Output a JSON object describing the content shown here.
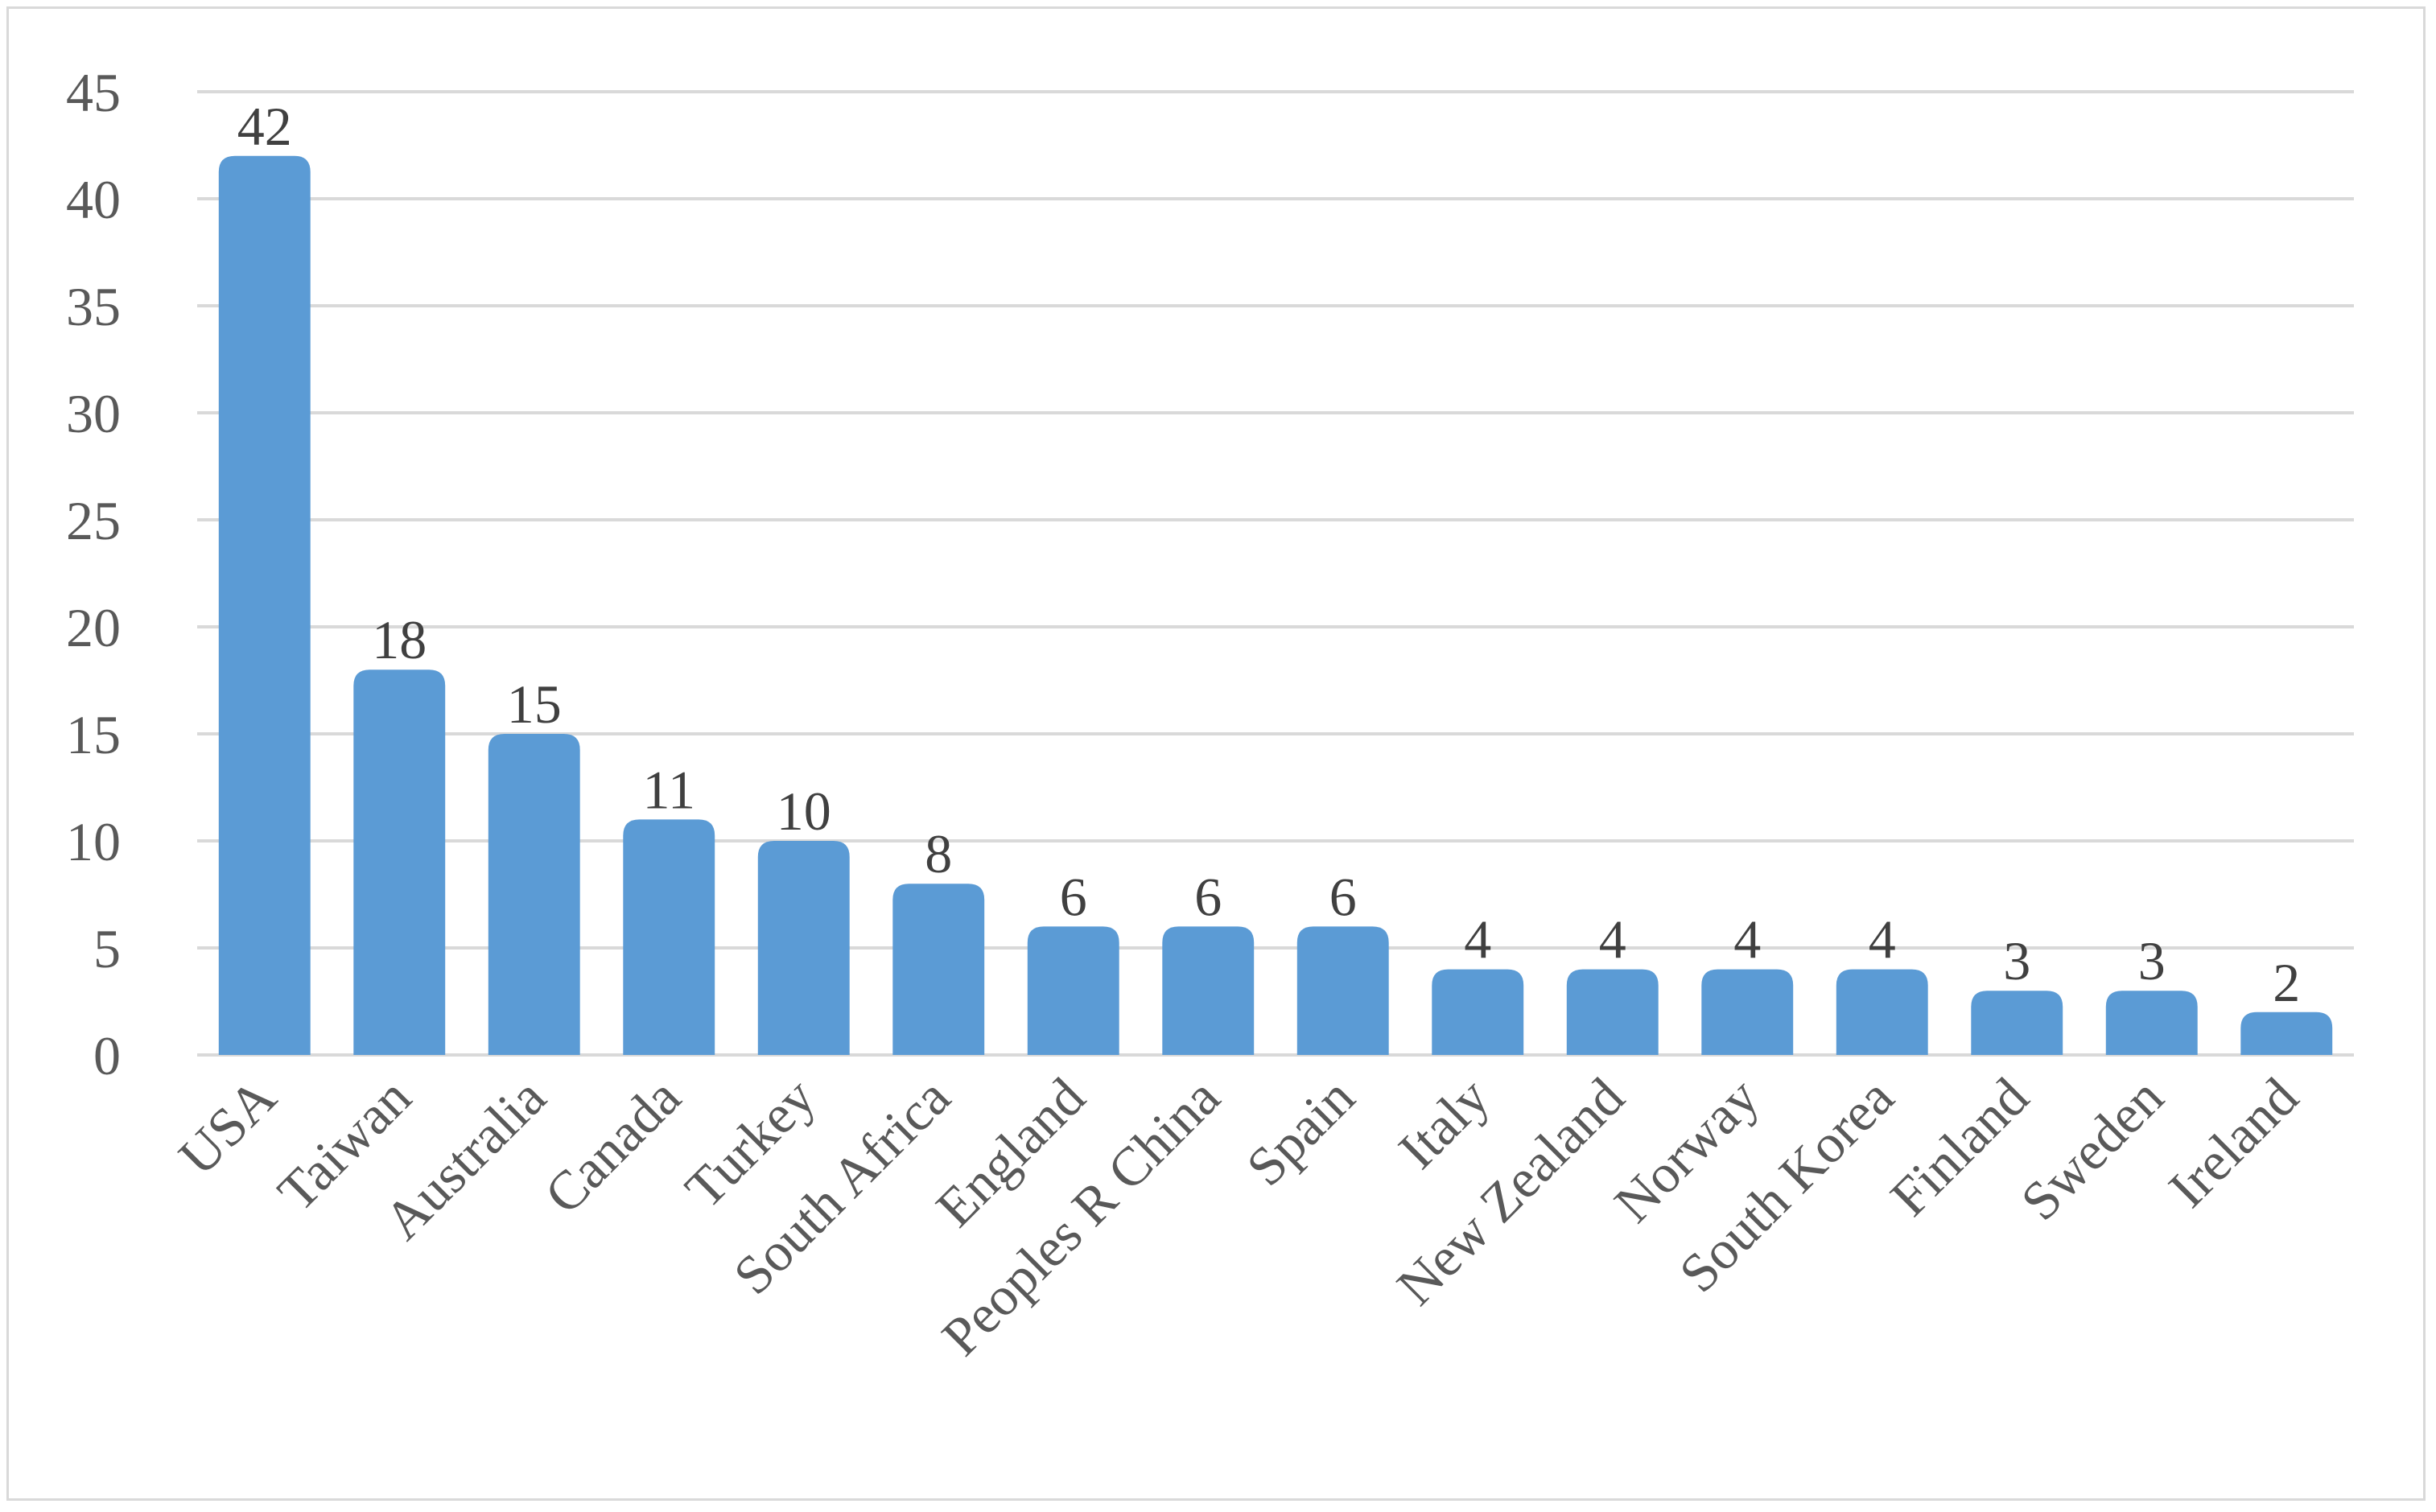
{
  "chart_data": {
    "type": "bar",
    "title": "",
    "xlabel": "",
    "ylabel": "",
    "categories": [
      "USA",
      "Taiwan",
      "Australia",
      "Canada",
      "Turkey",
      "South Africa",
      "England",
      "Peoples R China",
      "Spain",
      "Italy",
      "New Zealand",
      "Norway",
      "South Korea",
      "Finland",
      "Sweden",
      "Ireland"
    ],
    "values": [
      42,
      18,
      15,
      11,
      10,
      8,
      6,
      6,
      6,
      4,
      4,
      4,
      4,
      3,
      3,
      2
    ],
    "ylim": [
      0,
      45
    ],
    "yticks": [
      "0",
      "5",
      "10",
      "15",
      "20",
      "25",
      "30",
      "35",
      "40",
      "45"
    ],
    "data_labels": [
      "42",
      "18",
      "15",
      "11",
      "10",
      "8",
      "6",
      "6",
      "6",
      "4",
      "4",
      "4",
      "4",
      "3",
      "3",
      "2"
    ],
    "grid": true,
    "legend": "none",
    "bar_color": "#5b9bd5",
    "grid_color": "#d9d9d9"
  }
}
